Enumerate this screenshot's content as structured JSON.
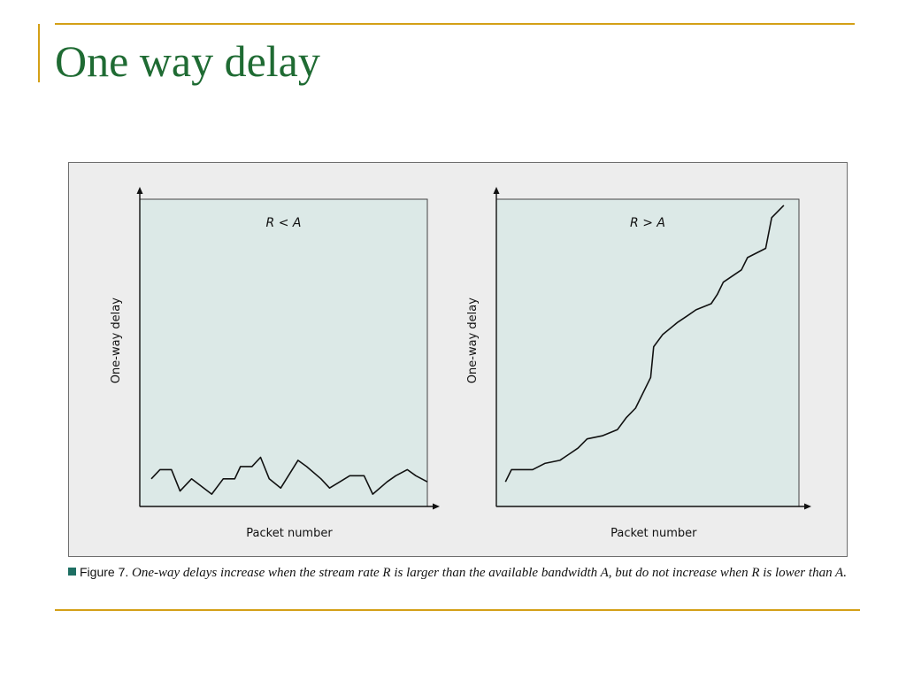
{
  "slide": {
    "title": "One way delay"
  },
  "colors": {
    "accent": "#d4a017",
    "title": "#1f6b33",
    "plot_background": "#dce9e7",
    "figure_background": "#ededed",
    "caption_marker": "#1e6f63"
  },
  "caption": {
    "label": "Figure 7.",
    "text": "One-way delays increase when the stream rate R is larger than the available bandwidth A, but do not increase when R is lower than A."
  },
  "chart_data": [
    {
      "type": "line",
      "title": "R < A",
      "xlabel": "Packet number",
      "ylabel": "One-way delay",
      "xlim": [
        0,
        100
      ],
      "ylim": [
        0,
        100
      ],
      "grid": false,
      "legend": "none",
      "x": [
        4,
        7,
        11,
        14,
        18,
        25,
        29,
        33,
        35,
        39,
        42,
        45,
        49,
        55,
        58,
        63,
        66,
        73,
        78,
        81,
        86,
        89,
        93,
        96,
        100
      ],
      "series": [
        {
          "values": [
            9,
            12,
            12,
            5,
            9,
            4,
            9,
            9,
            13,
            13,
            16,
            9,
            6,
            15,
            13,
            9,
            6,
            10,
            10,
            4,
            8,
            10,
            12,
            10,
            8
          ]
        }
      ]
    },
    {
      "type": "line",
      "title": "R > A",
      "xlabel": "Packet number",
      "ylabel": "One-way delay",
      "xlim": [
        0,
        100
      ],
      "ylim": [
        0,
        100
      ],
      "grid": false,
      "legend": "none",
      "x": [
        3,
        5,
        12,
        16,
        21,
        24,
        27,
        30,
        35,
        40,
        43,
        46,
        51,
        52,
        55,
        60,
        63,
        66,
        71,
        73,
        75,
        81,
        83,
        89,
        91,
        95
      ],
      "series": [
        {
          "values": [
            8,
            12,
            12,
            14,
            15,
            17,
            19,
            22,
            23,
            25,
            29,
            32,
            42,
            52,
            56,
            60,
            62,
            64,
            66,
            69,
            73,
            77,
            81,
            84,
            94,
            98
          ]
        }
      ]
    }
  ]
}
